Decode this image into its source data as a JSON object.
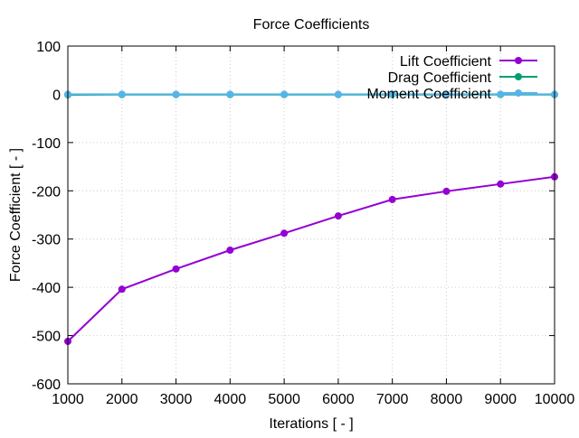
{
  "chart_data": {
    "type": "line",
    "title": "Force Coefficients",
    "xlabel": "Iterations [ - ]",
    "ylabel": "Force Coefficient [ - ]",
    "xlim": [
      1000,
      10000
    ],
    "ylim": [
      -600,
      100
    ],
    "xticks": [
      1000,
      2000,
      3000,
      4000,
      5000,
      6000,
      7000,
      8000,
      9000,
      10000
    ],
    "yticks": [
      100,
      0,
      -100,
      -200,
      -300,
      -400,
      -500,
      -600
    ],
    "grid": true,
    "legend_position": "top-right",
    "x": [
      1000,
      2000,
      3000,
      4000,
      5000,
      6000,
      7000,
      8000,
      9000,
      10000
    ],
    "series": [
      {
        "name": "Lift Coefficient",
        "color": "#9400d3",
        "values": [
          -512,
          -404,
          -362,
          -323,
          -288,
          -252,
          -218,
          -201,
          -186,
          -171
        ]
      },
      {
        "name": "Drag Coefficient",
        "color": "#009e73",
        "values": [
          -1,
          -0.5,
          -0.5,
          -0.5,
          -0.5,
          -0.5,
          -0.5,
          -0.5,
          -0.5,
          -0.5
        ]
      },
      {
        "name": "Moment Coefficient",
        "color": "#56b4e9",
        "values": [
          0,
          0,
          0,
          0,
          0,
          0,
          0,
          0,
          0,
          0
        ]
      }
    ]
  }
}
